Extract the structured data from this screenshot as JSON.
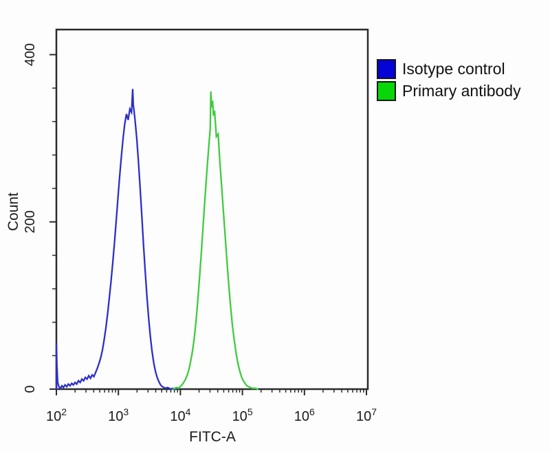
{
  "chart_data": {
    "type": "line",
    "title": "",
    "xlabel": "FITC-A",
    "ylabel": "Count",
    "x_scale": "log",
    "xlim": [
      100,
      10000000
    ],
    "ylim": [
      0,
      430
    ],
    "grid": false,
    "legend_position": "outside-top-right",
    "x_major_ticks": [
      {
        "base": "10",
        "exp": "2"
      },
      {
        "base": "10",
        "exp": "3"
      },
      {
        "base": "10",
        "exp": "4"
      },
      {
        "base": "10",
        "exp": "5"
      },
      {
        "base": "10",
        "exp": "6"
      },
      {
        "base": "10",
        "exp": "7"
      }
    ],
    "y_major_ticks": [
      {
        "value": 0,
        "label": "0"
      },
      {
        "value": 200,
        "label": "200"
      },
      {
        "value": 400,
        "label": "400"
      }
    ],
    "y_minor_step": 40,
    "series": [
      {
        "name": "Isotype control",
        "color": "#2c2ecb",
        "swatch_color": "#0404d6",
        "points": [
          [
            100,
            0
          ],
          [
            100,
            55
          ],
          [
            102,
            28
          ],
          [
            105,
            8
          ],
          [
            110,
            3
          ],
          [
            116,
            1
          ],
          [
            123,
            4
          ],
          [
            130,
            2
          ],
          [
            138,
            5
          ],
          [
            147,
            3
          ],
          [
            156,
            6
          ],
          [
            166,
            4
          ],
          [
            177,
            7
          ],
          [
            188,
            5
          ],
          [
            200,
            8
          ],
          [
            213,
            6
          ],
          [
            227,
            10
          ],
          [
            242,
            8
          ],
          [
            258,
            12
          ],
          [
            275,
            10
          ],
          [
            293,
            14
          ],
          [
            312,
            12
          ],
          [
            333,
            16
          ],
          [
            355,
            13
          ],
          [
            378,
            17
          ],
          [
            403,
            15
          ],
          [
            430,
            20
          ],
          [
            458,
            25
          ],
          [
            488,
            31
          ],
          [
            520,
            38
          ],
          [
            554,
            47
          ],
          [
            590,
            59
          ],
          [
            629,
            73
          ],
          [
            670,
            90
          ],
          [
            714,
            109
          ],
          [
            761,
            129
          ],
          [
            811,
            151
          ],
          [
            864,
            175
          ],
          [
            921,
            201
          ],
          [
            981,
            227
          ],
          [
            1045,
            253
          ],
          [
            1114,
            277
          ],
          [
            1187,
            299
          ],
          [
            1265,
            317
          ],
          [
            1348,
            329
          ],
          [
            1436,
            322
          ],
          [
            1530,
            335
          ],
          [
            1630,
            331
          ],
          [
            1700,
            359
          ],
          [
            1737,
            341
          ],
          [
            1851,
            323
          ],
          [
            1972,
            301
          ],
          [
            2101,
            273
          ],
          [
            2239,
            241
          ],
          [
            2386,
            207
          ],
          [
            2542,
            173
          ],
          [
            2709,
            141
          ],
          [
            2886,
            111
          ],
          [
            3075,
            85
          ],
          [
            3277,
            63
          ],
          [
            3492,
            45
          ],
          [
            3721,
            31
          ],
          [
            3965,
            21
          ],
          [
            4225,
            14
          ],
          [
            4502,
            9
          ],
          [
            4797,
            5
          ],
          [
            5112,
            3
          ],
          [
            5447,
            2
          ],
          [
            5804,
            1
          ],
          [
            6184,
            2
          ],
          [
            6590,
            1
          ],
          [
            7022,
            0
          ],
          [
            7482,
            1
          ],
          [
            7973,
            0
          ],
          [
            8496,
            0
          ]
        ]
      },
      {
        "name": "Primary antibody",
        "color": "#3ecb3e",
        "swatch_color": "#09d609",
        "points": [
          [
            7600,
            0
          ],
          [
            8100,
            1
          ],
          [
            8700,
            2
          ],
          [
            9300,
            1
          ],
          [
            9900,
            3
          ],
          [
            10600,
            5
          ],
          [
            11300,
            8
          ],
          [
            12100,
            12
          ],
          [
            12900,
            17
          ],
          [
            13800,
            24
          ],
          [
            14700,
            34
          ],
          [
            15700,
            46
          ],
          [
            16800,
            62
          ],
          [
            17900,
            82
          ],
          [
            19100,
            106
          ],
          [
            20400,
            134
          ],
          [
            21800,
            164
          ],
          [
            23300,
            196
          ],
          [
            24900,
            228
          ],
          [
            26600,
            258
          ],
          [
            28400,
            286
          ],
          [
            30300,
            312
          ],
          [
            31000,
            356
          ],
          [
            31900,
            337
          ],
          [
            33000,
            345
          ],
          [
            34100,
            327
          ],
          [
            35600,
            333
          ],
          [
            38000,
            302
          ],
          [
            40600,
            305
          ],
          [
            43400,
            271
          ],
          [
            46400,
            241
          ],
          [
            49600,
            211
          ],
          [
            53000,
            181
          ],
          [
            56600,
            151
          ],
          [
            60500,
            123
          ],
          [
            64700,
            98
          ],
          [
            69100,
            76
          ],
          [
            73900,
            58
          ],
          [
            79000,
            43
          ],
          [
            84400,
            31
          ],
          [
            90200,
            22
          ],
          [
            96400,
            15
          ],
          [
            103000,
            10
          ],
          [
            110100,
            7
          ],
          [
            117700,
            4
          ],
          [
            125800,
            3
          ],
          [
            134400,
            2
          ],
          [
            143600,
            1
          ],
          [
            153500,
            1
          ],
          [
            164000,
            1
          ],
          [
            175300,
            0
          ]
        ]
      }
    ]
  }
}
